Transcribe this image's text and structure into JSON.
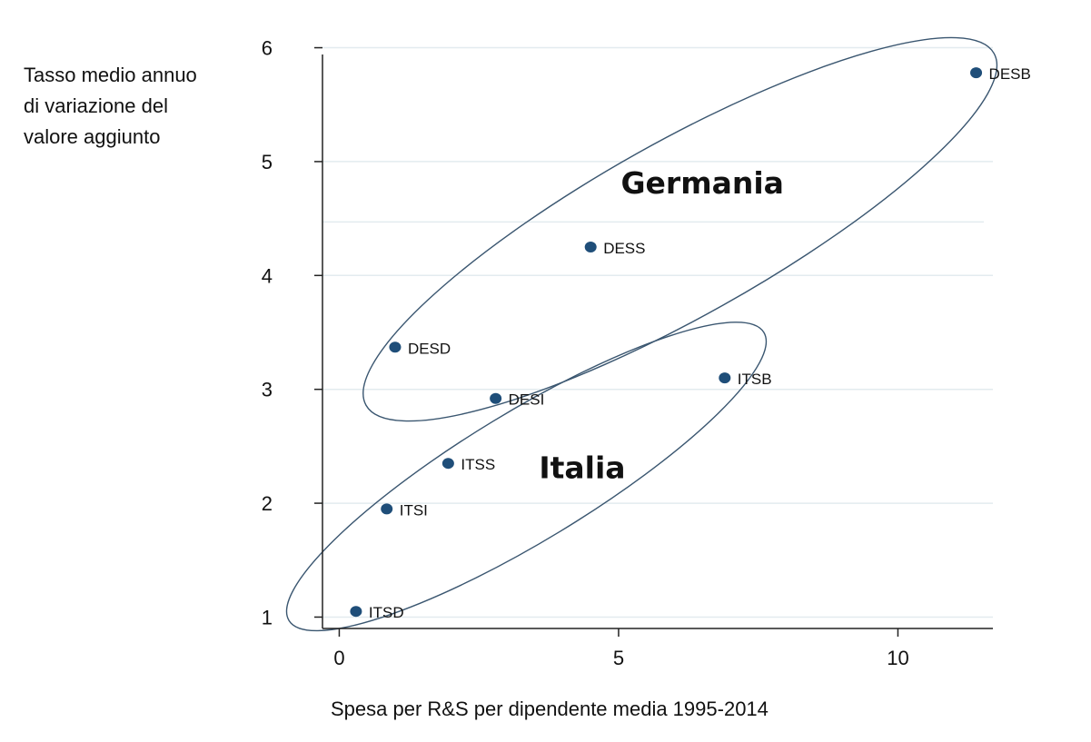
{
  "chart_data": {
    "type": "scatter",
    "title": "",
    "ylabel_lines": [
      "Tasso medio annuo",
      "di variazione del",
      "valore aggiunto"
    ],
    "xlabel": "Spesa per R&S per dipendente media 1995-2014",
    "xlim": [
      -0.3,
      11.7
    ],
    "ylim": [
      0.9,
      6.1
    ],
    "x_ticks": [
      0,
      5,
      10
    ],
    "y_ticks": [
      1,
      2,
      3,
      4,
      5,
      6
    ],
    "grid": "horizontal",
    "marker_color": "#1f4e79",
    "ellipse_color": "#3a5670",
    "points": [
      {
        "label": "DESB",
        "x": 11.4,
        "y": 5.78,
        "group": "Germania"
      },
      {
        "label": "DESS",
        "x": 4.5,
        "y": 4.25,
        "group": "Germania"
      },
      {
        "label": "DESD",
        "x": 1.0,
        "y": 3.37,
        "group": "Germania"
      },
      {
        "label": "DESI",
        "x": 2.8,
        "y": 2.92,
        "group": "Germania"
      },
      {
        "label": "ITSB",
        "x": 6.9,
        "y": 3.1,
        "group": "Italia"
      },
      {
        "label": "ITSS",
        "x": 1.95,
        "y": 2.35,
        "group": "Italia"
      },
      {
        "label": "ITSI",
        "x": 0.85,
        "y": 1.95,
        "group": "Italia"
      },
      {
        "label": "ITSD",
        "x": 0.3,
        "y": 1.05,
        "group": "Italia"
      }
    ],
    "groups": [
      {
        "name": "Germania",
        "label_at": [
          6.5,
          4.72
        ]
      },
      {
        "name": "Italia",
        "label_at": [
          4.35,
          2.22
        ]
      }
    ]
  }
}
